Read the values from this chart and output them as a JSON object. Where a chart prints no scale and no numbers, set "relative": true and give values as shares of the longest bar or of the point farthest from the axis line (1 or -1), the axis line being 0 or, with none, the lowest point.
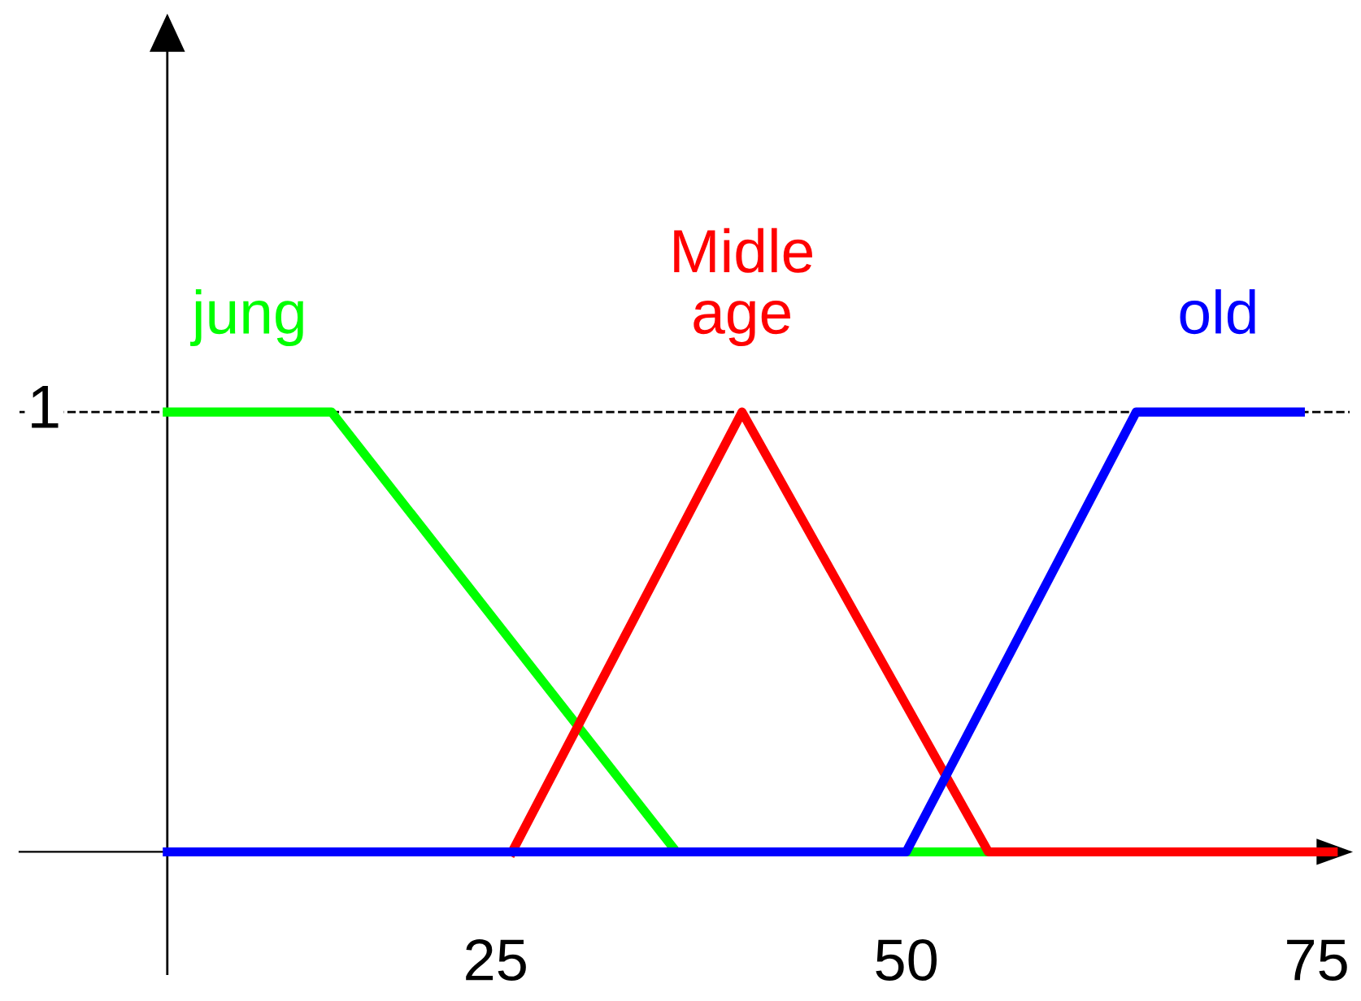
{
  "chart_data": {
    "type": "line",
    "relative": true,
    "series": [
      {
        "name": "jung",
        "color": "#00ff00",
        "x": [
          5,
          15,
          36,
          55
        ],
        "values": [
          1,
          1,
          0,
          0
        ]
      },
      {
        "name": "Midle\nage",
        "color": "#ff0000",
        "x": [
          26,
          40,
          55,
          76
        ],
        "values": [
          0,
          1,
          0,
          0
        ]
      },
      {
        "name": "old",
        "color": "#0000ff",
        "x": [
          5,
          50,
          64,
          74
        ],
        "values": [
          0,
          0,
          1,
          1
        ]
      }
    ],
    "xlim": [
      -4,
      77
    ],
    "xticks": [
      25,
      50,
      75
    ],
    "annotations": [
      {
        "text": "1",
        "x": -2.5,
        "y": 1
      }
    ],
    "ref_lines": [
      {
        "axis": "y",
        "value": 1,
        "label": null,
        "color": "#000000",
        "line_style": "dashed"
      },
      {
        "axis": "x",
        "value": 5,
        "label": null,
        "color": "#000000",
        "line_style": "solid"
      }
    ],
    "grid": false,
    "legend": false,
    "marker": "none",
    "line_style": "solid"
  }
}
